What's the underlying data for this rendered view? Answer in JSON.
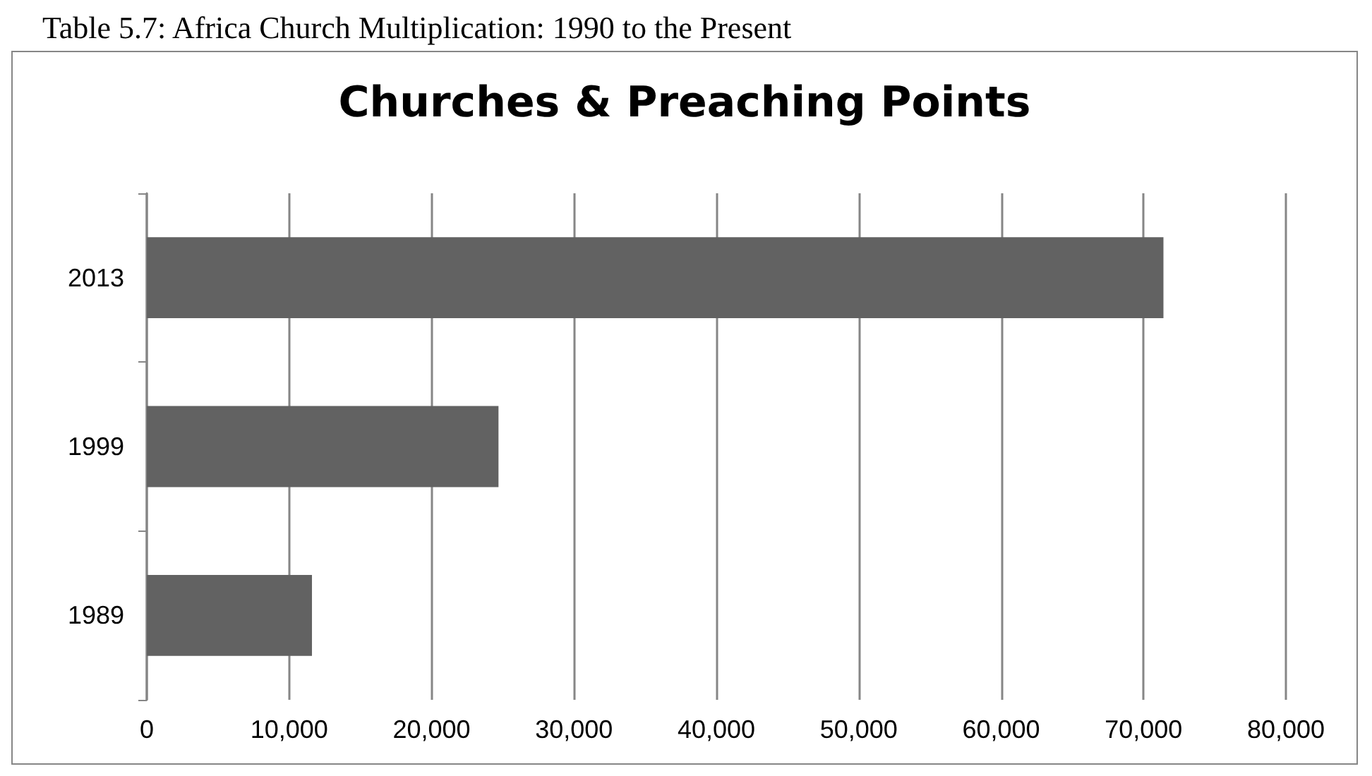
{
  "chart_data": {
    "type": "bar",
    "orientation": "horizontal",
    "title": "Churches & Preaching Points",
    "annotations": [
      "Table 5.7: Africa Church Multiplication: 1990 to the Present"
    ],
    "categories": [
      "2013",
      "1999",
      "1989"
    ],
    "values": [
      71400,
      24700,
      11600
    ],
    "color": "#626262",
    "xlim": [
      0,
      80000
    ],
    "xticks": [
      0,
      {
        "value": 10000,
        "label": "10,000"
      },
      {
        "value": 20000,
        "label": "20,000"
      },
      {
        "value": 30000,
        "label": "30,000"
      },
      {
        "value": 40000,
        "label": "40,000"
      },
      {
        "value": 50000,
        "label": "50,000"
      },
      {
        "value": 60000,
        "label": "60,000"
      },
      {
        "value": 70000,
        "label": "70,000"
      },
      {
        "value": 80000,
        "label": "80,000"
      }
    ],
    "grid": "x"
  }
}
